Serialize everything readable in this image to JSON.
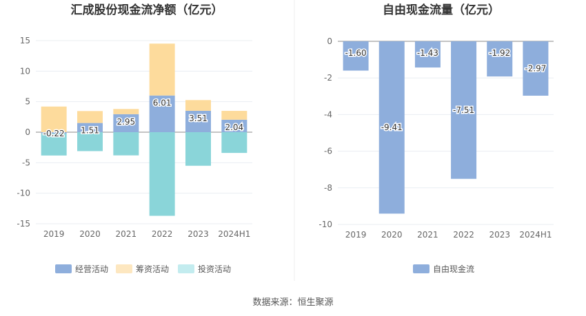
{
  "chart_data": [
    {
      "type": "bar",
      "stacked": true,
      "title": "汇成股份现金流净额（亿元）",
      "categories": [
        "2019",
        "2020",
        "2021",
        "2022",
        "2023",
        "2024H1"
      ],
      "ylim": [
        -15,
        15
      ],
      "yticks": [
        "15",
        "10",
        "5",
        "0",
        "-5",
        "-10",
        "-15"
      ],
      "grid": true,
      "legend_position": "bottom",
      "series": [
        {
          "name": "经营活动",
          "color": "#8eaedc",
          "values": [
            -0.22,
            1.51,
            2.95,
            6.01,
            3.51,
            2.04
          ]
        },
        {
          "name": "筹资活动",
          "color": "#fddb9c",
          "values": [
            4.2,
            1.95,
            0.85,
            8.5,
            1.75,
            1.45
          ]
        },
        {
          "name": "投资活动",
          "color": "#8ad5d9",
          "values": [
            -3.6,
            -3.1,
            -3.8,
            -13.7,
            -5.5,
            -3.4
          ]
        }
      ],
      "data_labels": [
        "-0.22",
        "1.51",
        "2.95",
        "6.01",
        "3.51",
        "2.04"
      ]
    },
    {
      "type": "bar",
      "title": "自由现金流量（亿元）",
      "categories": [
        "2019",
        "2020",
        "2021",
        "2022",
        "2023",
        "2024H1"
      ],
      "ylim": [
        -10,
        0
      ],
      "yticks": [
        "0",
        "-2",
        "-4",
        "-6",
        "-8",
        "-10"
      ],
      "grid": true,
      "legend_position": "bottom",
      "series": [
        {
          "name": "自由现金流",
          "color": "#8eaedc",
          "values": [
            -1.6,
            -9.41,
            -1.43,
            -7.51,
            -1.92,
            -2.97
          ]
        }
      ],
      "data_labels": [
        "-1.60",
        "-9.41",
        "-1.43",
        "-7.51",
        "-1.92",
        "-2.97"
      ]
    }
  ],
  "footer": {
    "source": "数据来源：恒生聚源"
  }
}
